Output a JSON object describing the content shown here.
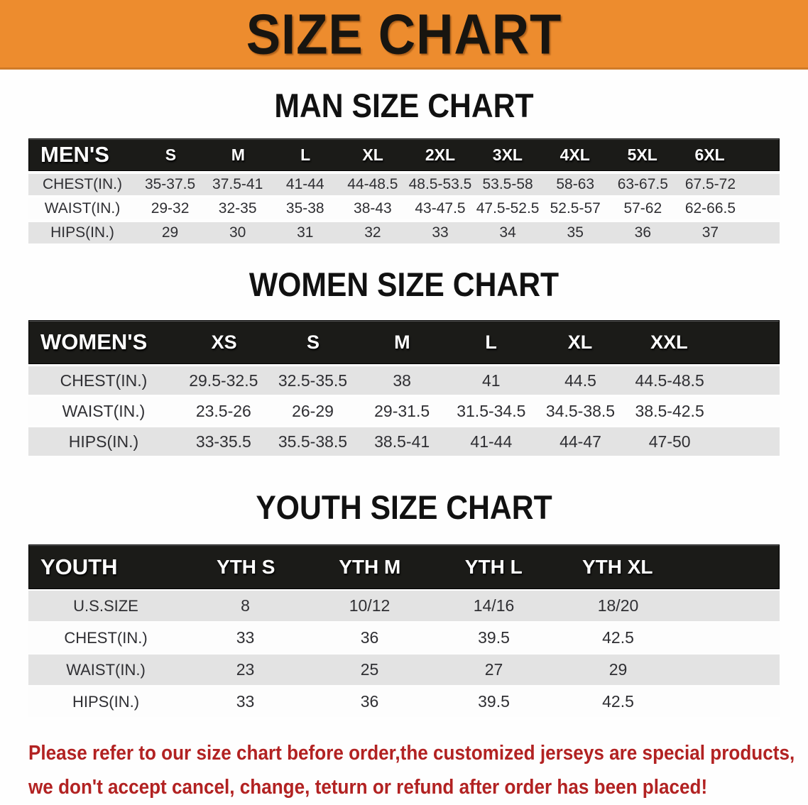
{
  "banner": {
    "title": "SIZE CHART",
    "bg_color": "#ED8C2E",
    "text_color": "#181510"
  },
  "colors": {
    "banner_orange": "#ED8C2E",
    "table_header_black": "#1B1B18",
    "row_gray": "#E3E3E3",
    "row_white": "#FDFDFD",
    "disclaimer_red": "#B22222"
  },
  "sections": [
    {
      "id": "men",
      "heading": "MAN SIZE CHART",
      "table": {
        "label": "MEN'S",
        "columns": [
          "S",
          "M",
          "L",
          "XL",
          "2XL",
          "3XL",
          "4XL",
          "5XL",
          "6XL"
        ],
        "rows": [
          {
            "label": "CHEST(IN.)",
            "values": [
              "35-37.5",
              "37.5-41",
              "41-44",
              "44-48.5",
              "48.5-53.5",
              "53.5-58",
              "58-63",
              "63-67.5",
              "67.5-72"
            ]
          },
          {
            "label": "WAIST(IN.)",
            "values": [
              "29-32",
              "32-35",
              "35-38",
              "38-43",
              "43-47.5",
              "47.5-52.5",
              "52.5-57",
              "57-62",
              "62-66.5"
            ]
          },
          {
            "label": "HIPS(IN.)",
            "values": [
              "29",
              "30",
              "31",
              "32",
              "33",
              "34",
              "35",
              "36",
              "37"
            ]
          }
        ]
      }
    },
    {
      "id": "women",
      "heading": "WOMEN SIZE CHART",
      "table": {
        "label": "WOMEN'S",
        "columns": [
          "XS",
          "S",
          "M",
          "L",
          "XL",
          "XXL"
        ],
        "rows": [
          {
            "label": "CHEST(IN.)",
            "values": [
              "29.5-32.5",
              "32.5-35.5",
              "38",
              "41",
              "44.5",
              "44.5-48.5"
            ]
          },
          {
            "label": "WAIST(IN.)",
            "values": [
              "23.5-26",
              "26-29",
              "29-31.5",
              "31.5-34.5",
              "34.5-38.5",
              "38.5-42.5"
            ]
          },
          {
            "label": "HIPS(IN.)",
            "values": [
              "33-35.5",
              "35.5-38.5",
              "38.5-41",
              "41-44",
              "44-47",
              "47-50"
            ]
          }
        ]
      }
    },
    {
      "id": "youth",
      "heading": "YOUTH SIZE CHART",
      "table": {
        "label": "YOUTH",
        "columns": [
          "YTH S",
          "YTH M",
          "YTH L",
          "YTH XL"
        ],
        "rows": [
          {
            "label": "U.S.SIZE",
            "values": [
              "8",
              "10/12",
              "14/16",
              "18/20"
            ]
          },
          {
            "label": "CHEST(IN.)",
            "values": [
              "33",
              "36",
              "39.5",
              "42.5"
            ]
          },
          {
            "label": "WAIST(IN.)",
            "values": [
              "23",
              "25",
              "27",
              "29"
            ]
          },
          {
            "label": "HIPS(IN.)",
            "values": [
              "33",
              "36",
              "39.5",
              "42.5"
            ]
          }
        ]
      }
    }
  ],
  "disclaimer": {
    "lines": [
      "Please refer to our size chart before order,the customized jerseys are special products,",
      "we don't accept cancel, change, teturn or refund after order has been placed!"
    ]
  }
}
